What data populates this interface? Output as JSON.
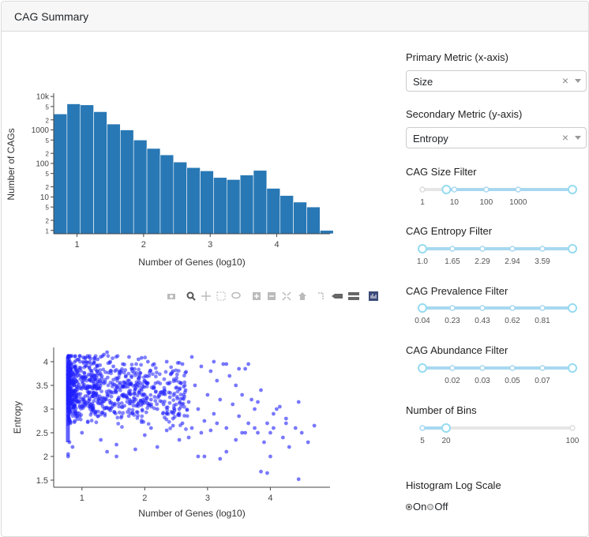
{
  "header": {
    "title": "CAG Summary"
  },
  "controls": {
    "primary_metric": {
      "label": "Primary Metric (x-axis)",
      "value": "Size"
    },
    "secondary_metric": {
      "label": "Secondary Metric (y-axis)",
      "value": "Entropy"
    },
    "size_filter": {
      "label": "CAG Size Filter",
      "ticks": [
        "1",
        "10",
        "100",
        "1000"
      ],
      "min": 0,
      "max": 4.7,
      "low": 0.75,
      "high": 4.7
    },
    "entropy_filter": {
      "label": "CAG Entropy Filter",
      "ticks": [
        "1.0",
        "1.65",
        "2.29",
        "2.94",
        "3.59"
      ]
    },
    "prevalence_filter": {
      "label": "CAG Prevalence Filter",
      "ticks": [
        "0.04",
        "0.23",
        "0.43",
        "0.62",
        "0.81"
      ]
    },
    "abundance_filter": {
      "label": "CAG Abundance Filter",
      "ticks": [
        "",
        "0.02",
        "0.03",
        "0.05",
        "0.07"
      ]
    },
    "bins": {
      "label": "Number of Bins",
      "min_label": "5",
      "value_label": "20",
      "max_label": "100",
      "min": 5,
      "max": 100,
      "value": 20
    },
    "log_scale": {
      "label": "Histogram Log Scale",
      "on": "On",
      "off": "Off",
      "selected": "On"
    }
  },
  "modebar": [
    "camera-icon",
    "zoom-icon",
    "pan-icon",
    "box-select-icon",
    "lasso-icon",
    "zoom-in-icon",
    "zoom-out-icon",
    "autoscale-icon",
    "reset-axes-icon",
    "spike-lines-icon",
    "hover-closest-icon",
    "hover-compare-icon",
    "plotly-logo-icon"
  ],
  "colors": {
    "bar": "#2878b5",
    "scatter": "#1f1fff",
    "slider": "#a8d8f0"
  },
  "chart_data": [
    {
      "type": "bar",
      "xlabel": "Number of Genes (log10)",
      "ylabel": "Number of CAGs",
      "x_range": [
        0.65,
        4.8
      ],
      "x_ticks": [
        1,
        2,
        3,
        4
      ],
      "y_log": true,
      "y_range_log10": [
        -0.1,
        4.05
      ],
      "y_ticks": [
        {
          "v": 1,
          "t": "1"
        },
        {
          "v": 2,
          "t": "2"
        },
        {
          "v": 5,
          "t": "5"
        },
        {
          "v": 10,
          "t": "10"
        },
        {
          "v": 20,
          "t": "2"
        },
        {
          "v": 50,
          "t": "5"
        },
        {
          "v": 100,
          "t": "100"
        },
        {
          "v": 200,
          "t": "2"
        },
        {
          "v": 500,
          "t": "5"
        },
        {
          "v": 1000,
          "t": "1000"
        },
        {
          "v": 2000,
          "t": "2"
        },
        {
          "v": 5000,
          "t": "5"
        },
        {
          "v": 10000,
          "t": "10k"
        }
      ],
      "bin_edges": [
        0.65,
        0.85,
        1.05,
        1.25,
        1.45,
        1.65,
        1.85,
        2.05,
        2.25,
        2.45,
        2.65,
        2.85,
        3.05,
        3.25,
        3.45,
        3.65,
        3.85,
        4.05,
        4.25,
        4.45,
        4.65,
        4.85
      ],
      "values": [
        3000,
        6000,
        5600,
        3500,
        1500,
        1000,
        500,
        280,
        180,
        110,
        75,
        60,
        38,
        33,
        45,
        62,
        18,
        11,
        7,
        5,
        1
      ]
    },
    {
      "type": "scatter",
      "xlabel": "Number of Genes (log10)",
      "ylabel": "Entropy",
      "x_range": [
        0.55,
        4.95
      ],
      "y_range": [
        1.35,
        4.3
      ],
      "x_ticks": [
        1,
        2,
        3,
        4
      ],
      "y_ticks": [
        1.5,
        2,
        2.5,
        3,
        3.5,
        4
      ],
      "points": [
        [
          1.02,
          4.09
        ],
        [
          1.05,
          4.07
        ],
        [
          1.11,
          4.09
        ],
        [
          1.2,
          4.08
        ],
        [
          1.3,
          4.1
        ],
        [
          1.35,
          4.15
        ],
        [
          1.4,
          4.2
        ],
        [
          1.25,
          4.05
        ],
        [
          0.95,
          4.05
        ],
        [
          1.15,
          3.95
        ],
        [
          1.45,
          4.0
        ],
        [
          1.5,
          3.9
        ],
        [
          1.6,
          3.8
        ],
        [
          1.65,
          3.95
        ],
        [
          1.7,
          3.7
        ],
        [
          1.75,
          3.6
        ],
        [
          1.8,
          3.85
        ],
        [
          1.85,
          3.5
        ],
        [
          1.9,
          3.65
        ],
        [
          1.95,
          3.4
        ],
        [
          2.0,
          3.3
        ],
        [
          2.05,
          3.55
        ],
        [
          2.1,
          3.2
        ],
        [
          2.15,
          3.45
        ],
        [
          2.2,
          3.0
        ],
        [
          2.25,
          3.35
        ],
        [
          2.3,
          3.1
        ],
        [
          2.35,
          2.9
        ],
        [
          2.4,
          3.25
        ],
        [
          2.45,
          2.8
        ],
        [
          2.5,
          3.6
        ],
        [
          2.55,
          3.0
        ],
        [
          2.6,
          2.7
        ],
        [
          2.65,
          3.4
        ],
        [
          2.7,
          3.15
        ],
        [
          2.75,
          2.6
        ],
        [
          2.8,
          3.5
        ],
        [
          2.85,
          3.0
        ],
        [
          2.9,
          3.9
        ],
        [
          2.95,
          2.75
        ],
        [
          3.0,
          3.3
        ],
        [
          3.05,
          3.8
        ],
        [
          3.1,
          2.9
        ],
        [
          3.15,
          3.6
        ],
        [
          3.2,
          3.2
        ],
        [
          3.25,
          3.95
        ],
        [
          3.3,
          2.6
        ],
        [
          3.35,
          3.7
        ],
        [
          3.4,
          3.1
        ],
        [
          3.45,
          3.5
        ],
        [
          3.5,
          2.85
        ],
        [
          3.55,
          3.3
        ],
        [
          3.6,
          3.85
        ],
        [
          3.65,
          2.7
        ],
        [
          3.7,
          3.2
        ],
        [
          3.75,
          3.0
        ],
        [
          3.8,
          2.5
        ],
        [
          3.85,
          3.4
        ],
        [
          3.9,
          2.3
        ],
        [
          3.95,
          2.7
        ],
        [
          4.0,
          2.5
        ],
        [
          4.05,
          2.9
        ],
        [
          4.1,
          3.0
        ],
        [
          4.2,
          2.4
        ],
        [
          4.25,
          2.7
        ],
        [
          4.3,
          2.2
        ],
        [
          4.4,
          2.6
        ],
        [
          4.45,
          3.15
        ],
        [
          4.5,
          2.5
        ],
        [
          4.6,
          2.3
        ],
        [
          4.7,
          2.65
        ],
        [
          4.45,
          1.52
        ],
        [
          3.95,
          1.65
        ],
        [
          3.85,
          1.68
        ],
        [
          4.0,
          2.0
        ],
        [
          3.3,
          2.1
        ],
        [
          3.2,
          1.95
        ],
        [
          2.85,
          2.0
        ],
        [
          2.95,
          2.0
        ],
        [
          2.2,
          2.2
        ],
        [
          1.85,
          2.15
        ],
        [
          1.55,
          2.0
        ],
        [
          1.55,
          2.25
        ],
        [
          1.3,
          2.35
        ],
        [
          1.4,
          2.1
        ],
        [
          0.78,
          2.0
        ],
        [
          0.78,
          2.05
        ],
        [
          0.8,
          2.3
        ],
        [
          0.85,
          2.2
        ],
        [
          1.0,
          2.5
        ],
        [
          2.55,
          2.35
        ],
        [
          2.7,
          2.4
        ],
        [
          3.05,
          2.55
        ],
        [
          3.6,
          2.5
        ],
        [
          3.45,
          2.35
        ],
        [
          2.35,
          2.55
        ],
        [
          2.6,
          3.95
        ],
        [
          2.35,
          4.0
        ],
        [
          2.05,
          4.0
        ],
        [
          1.9,
          4.05
        ],
        [
          3.65,
          3.95
        ],
        [
          3.5,
          3.85
        ],
        [
          3.3,
          3.95
        ],
        [
          3.1,
          4.0
        ],
        [
          2.75,
          4.1
        ],
        [
          2.45,
          3.8
        ],
        [
          2.15,
          3.95
        ],
        [
          1.75,
          4.1
        ],
        [
          1.95,
          4.08
        ],
        [
          3.8,
          3.15
        ],
        [
          4.15,
          3.05
        ],
        [
          4.25,
          2.8
        ],
        [
          4.05,
          2.6
        ],
        [
          3.75,
          2.6
        ],
        [
          3.55,
          2.5
        ],
        [
          3.15,
          2.7
        ],
        [
          2.9,
          2.5
        ],
        [
          2.45,
          2.65
        ],
        [
          2.1,
          2.6
        ],
        [
          2.0,
          2.45
        ]
      ]
    }
  ]
}
